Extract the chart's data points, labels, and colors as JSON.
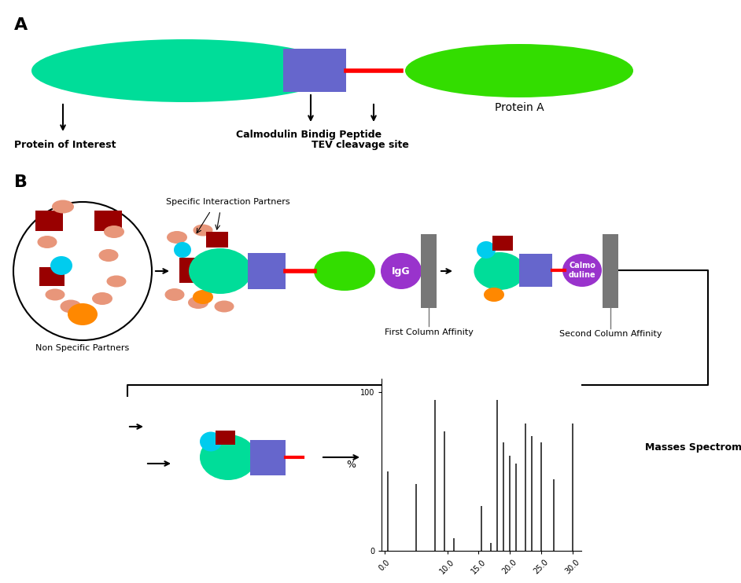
{
  "title_A": "A",
  "title_B": "B",
  "bg_color": "#ffffff",
  "protein_of_interest_color": "#00dd99",
  "cbp_color": "#6666cc",
  "protein_a_color": "#33dd00",
  "tev_line_color": "#ff0000",
  "label_protein_of_interest": "Protein of Interest",
  "label_cbp": "Calmodulin Bindig Peptide",
  "label_tev": "TEV cleavage site",
  "label_protein_a": "Protein A",
  "label_specific": "Specific Interaction Partners",
  "label_non_specific": "Non Specific Partners",
  "label_first_col": "First Column Affinity",
  "label_second_col": "Second Column Affinity",
  "label_ms": "Masses Spectrometry",
  "ms_x": [
    0.5,
    5.0,
    8.0,
    9.5,
    11.0,
    15.5,
    17.0,
    18.0,
    19.0,
    20.0,
    21.0,
    22.5,
    23.5,
    25.0,
    27.0,
    30.0
  ],
  "ms_y": [
    50,
    42,
    95,
    75,
    8,
    28,
    5,
    95,
    68,
    60,
    55,
    80,
    72,
    68,
    45,
    80
  ],
  "ms_ylabel": "%",
  "salmon_color": "#e8967a",
  "dark_red_color": "#990000",
  "cyan_color": "#00ccee",
  "orange_color": "#ff8800",
  "igg_color": "#9933cc",
  "calmodulin_color": "#9933cc",
  "gray_color": "#777777"
}
